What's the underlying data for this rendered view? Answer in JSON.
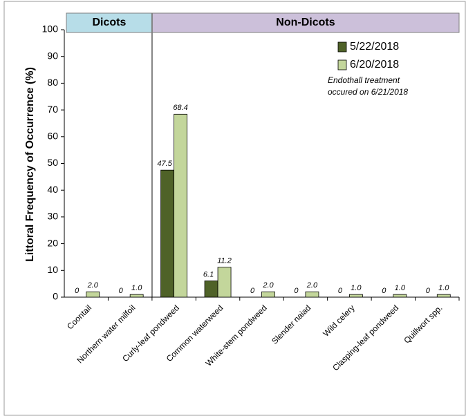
{
  "chart_data": {
    "type": "bar",
    "y_label": "Littoral Frequency of Occurrence (%)",
    "groups": [
      "Dicots",
      "Non-Dicots"
    ],
    "categories": [
      "Coontail",
      "Northern water milfoil",
      "Curly-leaf pondweed",
      "Common waterweed",
      "White-stem pondweed",
      "Slender naiad",
      "Wild celery",
      "Clasping-leaf pondweed",
      "Quillwort spp."
    ],
    "series": [
      {
        "name": "5/22/2018",
        "color": "#4f6228",
        "values": [
          0,
          0,
          47.5,
          6.1,
          0,
          0,
          0,
          0,
          0
        ]
      },
      {
        "name": "6/20/2018",
        "color": "#c3d69b",
        "values": [
          2.0,
          1.0,
          68.4,
          11.2,
          2.0,
          2.0,
          1.0,
          1.0,
          1.0
        ],
        "value_labels": [
          "2.0",
          "1.0",
          "68.4",
          "11.2",
          "2.0",
          "2.0",
          "1.0",
          "1.0",
          "1.0"
        ]
      }
    ],
    "annotation": [
      "Endothall treatment",
      "occured on 6/21/2018"
    ],
    "ylim": [
      0,
      100
    ],
    "yticks": [
      0,
      10,
      20,
      30,
      40,
      50,
      60,
      70,
      80,
      90,
      100
    ],
    "legend": "top-right"
  }
}
